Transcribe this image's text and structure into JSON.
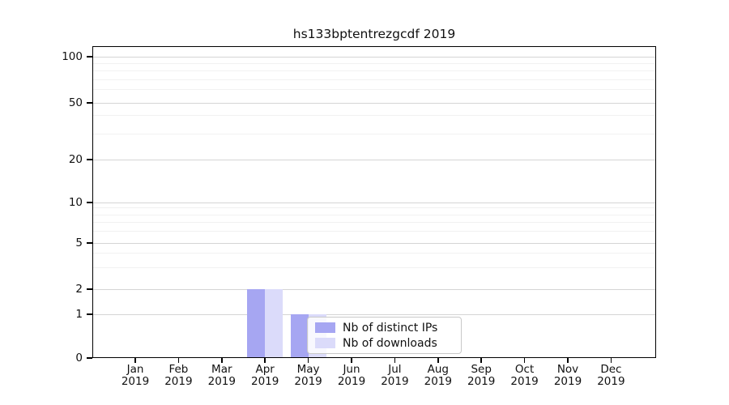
{
  "title": "hs133bptentrezgcdf 2019",
  "chart_data": {
    "type": "bar",
    "title": "hs133bptentrezgcdf 2019",
    "categories": [
      "Jan 2019",
      "Feb 2019",
      "Mar 2019",
      "Apr 2019",
      "May 2019",
      "Jun 2019",
      "Jul 2019",
      "Aug 2019",
      "Sep 2019",
      "Oct 2019",
      "Nov 2019",
      "Dec 2019"
    ],
    "series": [
      {
        "name": "Nb of distinct IPs",
        "color": "#a6a6f2",
        "values": [
          0,
          0,
          0,
          2,
          1,
          0,
          0,
          0,
          0,
          0,
          0,
          0
        ]
      },
      {
        "name": "Nb of downloads",
        "color": "#dbdbfa",
        "values": [
          0,
          0,
          0,
          2,
          1,
          0,
          0,
          0,
          0,
          0,
          0,
          0
        ]
      }
    ],
    "xlabel": "",
    "ylabel": "",
    "yscale": "log1p",
    "ylim": [
      0,
      118
    ],
    "yticks": [
      0,
      1,
      2,
      5,
      10,
      20,
      50,
      100
    ],
    "minor_grid_values": [
      3,
      4,
      6,
      7,
      8,
      9,
      30,
      40,
      60,
      70,
      80,
      90
    ],
    "grid": true,
    "legend_position": "inside-lower-center"
  },
  "colors": {
    "background": "#ffffff",
    "spine": "#000000",
    "major_grid": "#d5d5d5",
    "minor_grid": "#f1f1f1",
    "text": "#111111",
    "legend_border": "#c9c9c9"
  }
}
